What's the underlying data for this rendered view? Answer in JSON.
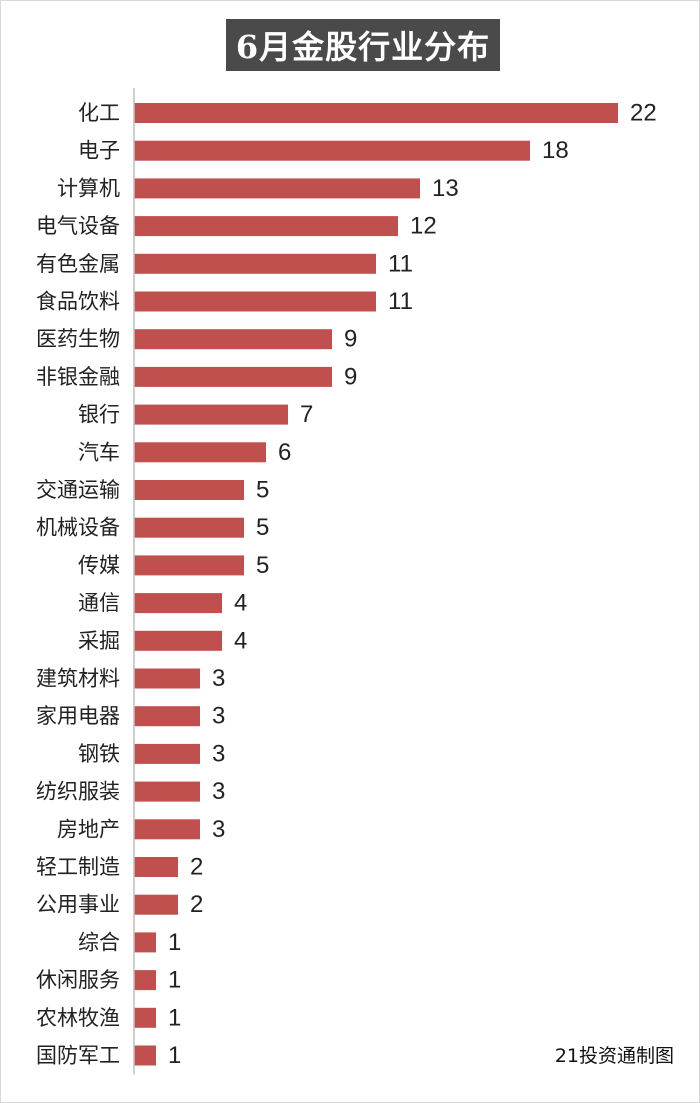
{
  "title": "6月金股行业分布",
  "source_note": "21投资通制图",
  "chart_data": {
    "type": "bar",
    "orientation": "horizontal",
    "title": "6月金股行业分布",
    "categories": [
      "化工",
      "电子",
      "计算机",
      "电气设备",
      "有色金属",
      "食品饮料",
      "医药生物",
      "非银金融",
      "银行",
      "汽车",
      "交通运输",
      "机械设备",
      "传媒",
      "通信",
      "采掘",
      "建筑材料",
      "家用电器",
      "钢铁",
      "纺织服装",
      "房地产",
      "轻工制造",
      "公用事业",
      "综合",
      "休闲服务",
      "农林牧渔",
      "国防军工"
    ],
    "values": [
      22,
      18,
      13,
      12,
      11,
      11,
      9,
      9,
      7,
      6,
      5,
      5,
      5,
      4,
      4,
      3,
      3,
      3,
      3,
      3,
      2,
      2,
      1,
      1,
      1,
      1
    ],
    "xlim": [
      0,
      22
    ],
    "grid": false,
    "legend": "none",
    "colors": {
      "bar": "#c0504d",
      "axis": "#bfbfbf",
      "title_bg": "#4a4a4a"
    }
  }
}
